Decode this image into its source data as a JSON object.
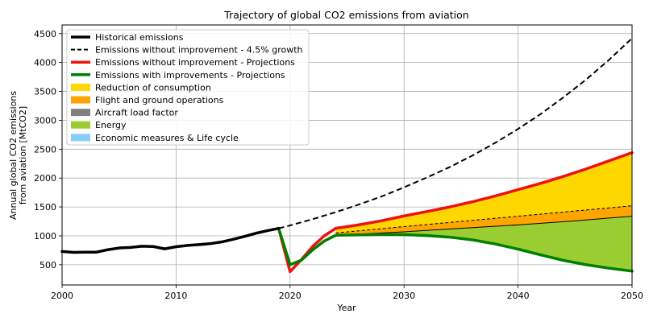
{
  "chart_data": {
    "type": "line",
    "title": "Trajectory of global CO2 emissions from aviation",
    "xlabel": "Year",
    "ylabel_lines": [
      "Annual global CO2 emissions",
      "from aviation [MtCO2]"
    ],
    "xlim": [
      2000,
      2050
    ],
    "ylim": [
      150,
      4650
    ],
    "x_ticks": [
      2000,
      2010,
      2020,
      2030,
      2040,
      2050
    ],
    "y_ticks": [
      500,
      1000,
      1500,
      2000,
      2500,
      3000,
      3500,
      4000,
      4500
    ],
    "grid": true,
    "legend_position": "upper-left",
    "series": [
      {
        "name": "Historical emissions",
        "style": "solid",
        "color": "#000000",
        "points": [
          [
            2000,
            730
          ],
          [
            2001,
            715
          ],
          [
            2002,
            718
          ],
          [
            2003,
            718
          ],
          [
            2004,
            760
          ],
          [
            2005,
            790
          ],
          [
            2006,
            800
          ],
          [
            2007,
            820
          ],
          [
            2008,
            815
          ],
          [
            2009,
            775
          ],
          [
            2010,
            812
          ],
          [
            2011,
            835
          ],
          [
            2012,
            848
          ],
          [
            2013,
            865
          ],
          [
            2014,
            895
          ],
          [
            2015,
            940
          ],
          [
            2016,
            990
          ],
          [
            2017,
            1045
          ],
          [
            2018,
            1090
          ],
          [
            2019,
            1130
          ]
        ]
      },
      {
        "name": "Emissions without improvement - 4.5% growth",
        "style": "dashed",
        "color": "#000000",
        "points": [
          [
            2019,
            1130
          ],
          [
            2020,
            1180
          ],
          [
            2022,
            1290
          ],
          [
            2024,
            1410
          ],
          [
            2026,
            1540
          ],
          [
            2028,
            1680
          ],
          [
            2030,
            1840
          ],
          [
            2032,
            2010
          ],
          [
            2034,
            2190
          ],
          [
            2036,
            2390
          ],
          [
            2038,
            2610
          ],
          [
            2040,
            2850
          ],
          [
            2042,
            3110
          ],
          [
            2044,
            3400
          ],
          [
            2046,
            3710
          ],
          [
            2048,
            4050
          ],
          [
            2050,
            4420
          ]
        ]
      },
      {
        "name": "Emissions without improvement - Projections",
        "style": "solid",
        "color": "#ee1111",
        "points": [
          [
            2019,
            1130
          ],
          [
            2020,
            380
          ],
          [
            2021,
            590
          ],
          [
            2022,
            820
          ],
          [
            2023,
            1000
          ],
          [
            2024,
            1130
          ],
          [
            2026,
            1190
          ],
          [
            2028,
            1260
          ],
          [
            2030,
            1345
          ],
          [
            2032,
            1420
          ],
          [
            2034,
            1500
          ],
          [
            2036,
            1590
          ],
          [
            2038,
            1690
          ],
          [
            2040,
            1800
          ],
          [
            2042,
            1910
          ],
          [
            2044,
            2030
          ],
          [
            2046,
            2160
          ],
          [
            2048,
            2300
          ],
          [
            2050,
            2440
          ]
        ]
      },
      {
        "name": "Emissions with improvements - Projections",
        "style": "solid",
        "color": "#008000",
        "points": [
          [
            2019,
            1130
          ],
          [
            2020,
            500
          ],
          [
            2021,
            580
          ],
          [
            2022,
            760
          ],
          [
            2023,
            910
          ],
          [
            2024,
            1010
          ],
          [
            2026,
            1018
          ],
          [
            2028,
            1022
          ],
          [
            2030,
            1020
          ],
          [
            2032,
            1005
          ],
          [
            2034,
            978
          ],
          [
            2036,
            930
          ],
          [
            2038,
            860
          ],
          [
            2040,
            770
          ],
          [
            2042,
            670
          ],
          [
            2044,
            575
          ],
          [
            2046,
            500
          ],
          [
            2048,
            440
          ],
          [
            2050,
            390
          ]
        ]
      }
    ],
    "areas": [
      {
        "name": "Reduction of consumption",
        "color": "#ffd700",
        "upper": "Emissions without improvement - Projections",
        "lower_points": [
          [
            2024,
            1050
          ],
          [
            2030,
            1160
          ],
          [
            2035,
            1250
          ],
          [
            2040,
            1340
          ],
          [
            2045,
            1430
          ],
          [
            2050,
            1520
          ]
        ]
      },
      {
        "name": "Flight and ground operations",
        "color": "#ffa500",
        "upper_points": [
          [
            2024,
            1050
          ],
          [
            2030,
            1160
          ],
          [
            2035,
            1250
          ],
          [
            2040,
            1340
          ],
          [
            2045,
            1430
          ],
          [
            2050,
            1520
          ]
        ],
        "lower_points": [
          [
            2024,
            1010
          ],
          [
            2030,
            1070
          ],
          [
            2035,
            1130
          ],
          [
            2040,
            1190
          ],
          [
            2045,
            1260
          ],
          [
            2050,
            1340
          ]
        ]
      },
      {
        "name": "Aircraft load factor",
        "color": "#808080",
        "upper_points": [],
        "lower_points": []
      },
      {
        "name": "Energy",
        "color": "#9acd32",
        "upper_points": [
          [
            2024,
            1010
          ],
          [
            2030,
            1070
          ],
          [
            2035,
            1130
          ],
          [
            2040,
            1190
          ],
          [
            2045,
            1260
          ],
          [
            2050,
            1340
          ]
        ],
        "lower": "Emissions with improvements - Projections"
      },
      {
        "name": "Economic measures & Life cycle",
        "color": "#87cefa",
        "upper_points": [],
        "lower_points": []
      }
    ],
    "legend": [
      {
        "label": "Historical emissions",
        "kind": "line",
        "color": "#000000",
        "dash": false
      },
      {
        "label": "Emissions without improvement - 4.5% growth",
        "kind": "line",
        "color": "#000000",
        "dash": true
      },
      {
        "label": "Emissions without improvement - Projections",
        "kind": "line",
        "color": "#ee1111",
        "dash": false
      },
      {
        "label": "Emissions with improvements - Projections",
        "kind": "line",
        "color": "#008000",
        "dash": false
      },
      {
        "label": "Reduction of consumption",
        "kind": "patch",
        "color": "#ffd700"
      },
      {
        "label": "Flight and ground operations",
        "kind": "patch",
        "color": "#ffa500"
      },
      {
        "label": "Aircraft load factor",
        "kind": "patch",
        "color": "#808080"
      },
      {
        "label": "Energy",
        "kind": "patch",
        "color": "#9acd32"
      },
      {
        "label": "Economic measures & Life cycle",
        "kind": "patch",
        "color": "#87cefa"
      }
    ]
  }
}
